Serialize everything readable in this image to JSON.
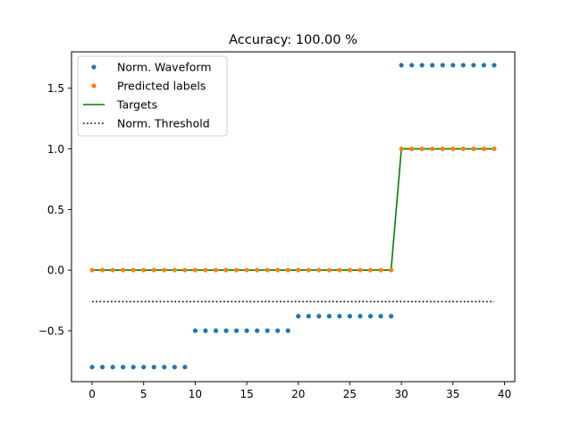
{
  "chart_data": {
    "type": "scatter",
    "title": "Accuracy: 100.00 %",
    "xlabel": "",
    "ylabel": "",
    "xlim": [
      -2,
      41
    ],
    "ylim": [
      -0.92,
      1.8
    ],
    "xticks": [
      0,
      5,
      10,
      15,
      20,
      25,
      30,
      35,
      40
    ],
    "yticks": [
      -0.5,
      0.0,
      0.5,
      1.0,
      1.5
    ],
    "xtick_labels": [
      "0",
      "5",
      "10",
      "15",
      "20",
      "25",
      "30",
      "35",
      "40"
    ],
    "ytick_labels": [
      "−0.5",
      "0.0",
      "0.5",
      "1.0",
      "1.5"
    ],
    "grid": false,
    "legend_position": "top-left",
    "series": [
      {
        "name": "Norm. Waveform",
        "kind": "scatter",
        "color": "#1f77b4",
        "x": [
          0,
          1,
          2,
          3,
          4,
          5,
          6,
          7,
          8,
          9,
          10,
          11,
          12,
          13,
          14,
          15,
          16,
          17,
          18,
          19,
          20,
          21,
          22,
          23,
          24,
          25,
          26,
          27,
          28,
          29,
          30,
          31,
          32,
          33,
          34,
          35,
          36,
          37,
          38,
          39
        ],
        "y": [
          -0.8,
          -0.8,
          -0.8,
          -0.8,
          -0.8,
          -0.8,
          -0.8,
          -0.8,
          -0.8,
          -0.8,
          -0.5,
          -0.5,
          -0.5,
          -0.5,
          -0.5,
          -0.5,
          -0.5,
          -0.5,
          -0.5,
          -0.5,
          -0.38,
          -0.38,
          -0.38,
          -0.38,
          -0.38,
          -0.38,
          -0.38,
          -0.38,
          -0.38,
          -0.38,
          1.69,
          1.69,
          1.69,
          1.69,
          1.69,
          1.69,
          1.69,
          1.69,
          1.69,
          1.69
        ]
      },
      {
        "name": "Predicted labels",
        "kind": "scatter",
        "color": "#ff7f0e",
        "x": [
          0,
          1,
          2,
          3,
          4,
          5,
          6,
          7,
          8,
          9,
          10,
          11,
          12,
          13,
          14,
          15,
          16,
          17,
          18,
          19,
          20,
          21,
          22,
          23,
          24,
          25,
          26,
          27,
          28,
          29,
          30,
          31,
          32,
          33,
          34,
          35,
          36,
          37,
          38,
          39
        ],
        "y": [
          0,
          0,
          0,
          0,
          0,
          0,
          0,
          0,
          0,
          0,
          0,
          0,
          0,
          0,
          0,
          0,
          0,
          0,
          0,
          0,
          0,
          0,
          0,
          0,
          0,
          0,
          0,
          0,
          0,
          0,
          1,
          1,
          1,
          1,
          1,
          1,
          1,
          1,
          1,
          1
        ]
      },
      {
        "name": "Targets",
        "kind": "line",
        "color": "#008000",
        "x": [
          0,
          1,
          2,
          3,
          4,
          5,
          6,
          7,
          8,
          9,
          10,
          11,
          12,
          13,
          14,
          15,
          16,
          17,
          18,
          19,
          20,
          21,
          22,
          23,
          24,
          25,
          26,
          27,
          28,
          29,
          30,
          31,
          32,
          33,
          34,
          35,
          36,
          37,
          38,
          39
        ],
        "y": [
          0,
          0,
          0,
          0,
          0,
          0,
          0,
          0,
          0,
          0,
          0,
          0,
          0,
          0,
          0,
          0,
          0,
          0,
          0,
          0,
          0,
          0,
          0,
          0,
          0,
          0,
          0,
          0,
          0,
          0,
          1,
          1,
          1,
          1,
          1,
          1,
          1,
          1,
          1,
          1
        ]
      },
      {
        "name": "Norm. Threshold",
        "kind": "dotted-line",
        "color": "#000000",
        "x": [
          0,
          39
        ],
        "y": [
          -0.26,
          -0.26
        ]
      }
    ]
  }
}
